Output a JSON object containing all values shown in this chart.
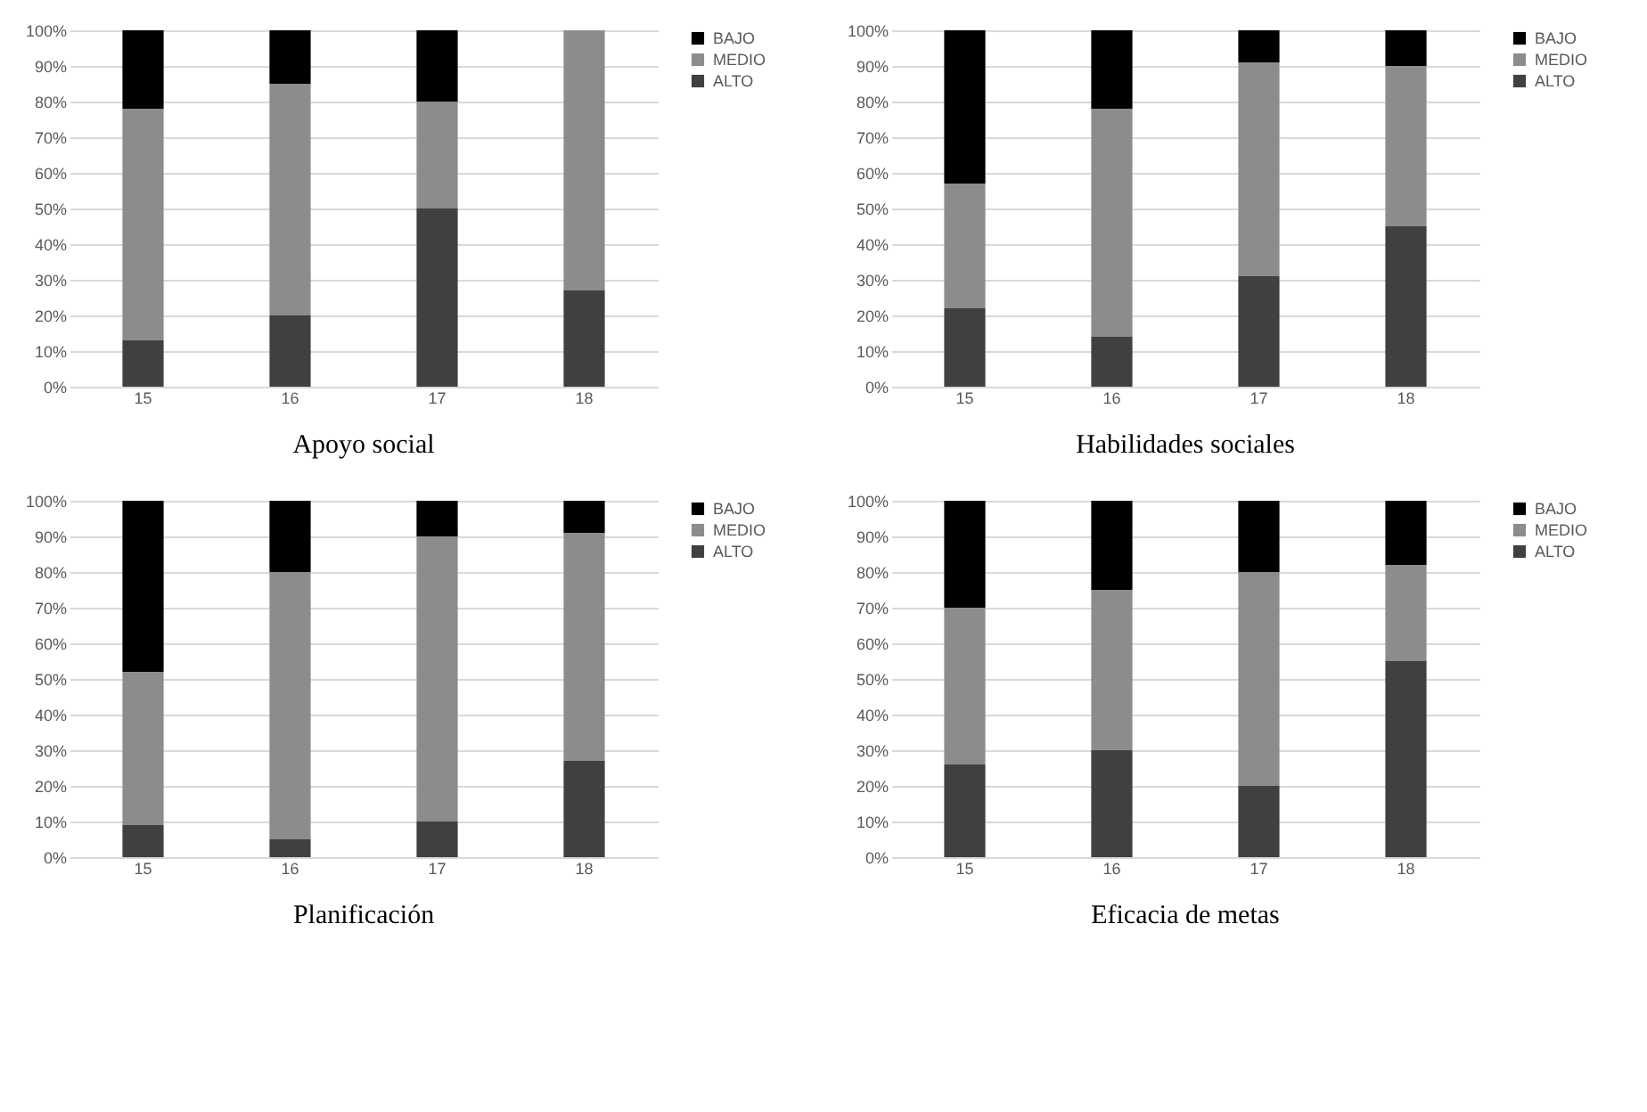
{
  "chart_data": [
    {
      "type": "bar",
      "stacked": true,
      "title": "Apoyo social",
      "categories": [
        "15",
        "16",
        "17",
        "18"
      ],
      "series": [
        {
          "name": "ALTO",
          "color": "#404040",
          "values": [
            13,
            20,
            50,
            27
          ]
        },
        {
          "name": "MEDIO",
          "color": "#8c8c8c",
          "values": [
            65,
            65,
            30,
            73
          ]
        },
        {
          "name": "BAJO",
          "color": "#000000",
          "values": [
            22,
            15,
            20,
            0
          ]
        }
      ],
      "ylim": [
        0,
        100
      ],
      "yticks": [
        {
          "value": 0,
          "label": "0%"
        },
        {
          "value": 10,
          "label": "10%"
        },
        {
          "value": 20,
          "label": "20%"
        },
        {
          "value": 30,
          "label": "30%"
        },
        {
          "value": 40,
          "label": "40%"
        },
        {
          "value": 50,
          "label": "50%"
        },
        {
          "value": 60,
          "label": "60%"
        },
        {
          "value": 70,
          "label": "70%"
        },
        {
          "value": 80,
          "label": "80%"
        },
        {
          "value": 90,
          "label": "90%"
        },
        {
          "value": 100,
          "label": "100%"
        }
      ],
      "grid": "y",
      "legend": "right"
    },
    {
      "type": "bar",
      "stacked": true,
      "title": "Habilidades sociales",
      "categories": [
        "15",
        "16",
        "17",
        "18"
      ],
      "series": [
        {
          "name": "ALTO",
          "color": "#404040",
          "values": [
            22,
            14,
            31,
            45
          ]
        },
        {
          "name": "MEDIO",
          "color": "#8c8c8c",
          "values": [
            35,
            64,
            60,
            45
          ]
        },
        {
          "name": "BAJO",
          "color": "#000000",
          "values": [
            43,
            22,
            9,
            10
          ]
        }
      ],
      "ylim": [
        0,
        100
      ],
      "yticks": [
        {
          "value": 0,
          "label": "0%"
        },
        {
          "value": 10,
          "label": "10%"
        },
        {
          "value": 20,
          "label": "20%"
        },
        {
          "value": 30,
          "label": "30%"
        },
        {
          "value": 40,
          "label": "40%"
        },
        {
          "value": 50,
          "label": "50%"
        },
        {
          "value": 60,
          "label": "60%"
        },
        {
          "value": 70,
          "label": "70%"
        },
        {
          "value": 80,
          "label": "80%"
        },
        {
          "value": 90,
          "label": "90%"
        },
        {
          "value": 100,
          "label": "100%"
        }
      ],
      "grid": "y",
      "legend": "right"
    },
    {
      "type": "bar",
      "stacked": true,
      "title": "Planificación",
      "categories": [
        "15",
        "16",
        "17",
        "18"
      ],
      "series": [
        {
          "name": "ALTO",
          "color": "#404040",
          "values": [
            9,
            5,
            10,
            27
          ]
        },
        {
          "name": "MEDIO",
          "color": "#8c8c8c",
          "values": [
            43,
            75,
            80,
            64
          ]
        },
        {
          "name": "BAJO",
          "color": "#000000",
          "values": [
            48,
            20,
            10,
            9
          ]
        }
      ],
      "ylim": [
        0,
        100
      ],
      "yticks": [
        {
          "value": 0,
          "label": "0%"
        },
        {
          "value": 10,
          "label": "10%"
        },
        {
          "value": 20,
          "label": "20%"
        },
        {
          "value": 30,
          "label": "30%"
        },
        {
          "value": 40,
          "label": "40%"
        },
        {
          "value": 50,
          "label": "50%"
        },
        {
          "value": 60,
          "label": "60%"
        },
        {
          "value": 70,
          "label": "70%"
        },
        {
          "value": 80,
          "label": "80%"
        },
        {
          "value": 90,
          "label": "90%"
        },
        {
          "value": 100,
          "label": "100%"
        }
      ],
      "grid": "y",
      "legend": "right"
    },
    {
      "type": "bar",
      "stacked": true,
      "title": "Eficacia de metas",
      "categories": [
        "15",
        "16",
        "17",
        "18"
      ],
      "series": [
        {
          "name": "ALTO",
          "color": "#404040",
          "values": [
            26,
            30,
            20,
            55
          ]
        },
        {
          "name": "MEDIO",
          "color": "#8c8c8c",
          "values": [
            44,
            45,
            60,
            27
          ]
        },
        {
          "name": "BAJO",
          "color": "#000000",
          "values": [
            30,
            25,
            20,
            18
          ]
        }
      ],
      "ylim": [
        0,
        100
      ],
      "yticks": [
        {
          "value": 0,
          "label": "0%"
        },
        {
          "value": 10,
          "label": "10%"
        },
        {
          "value": 20,
          "label": "20%"
        },
        {
          "value": 30,
          "label": "30%"
        },
        {
          "value": 40,
          "label": "40%"
        },
        {
          "value": 50,
          "label": "50%"
        },
        {
          "value": 60,
          "label": "60%"
        },
        {
          "value": 70,
          "label": "70%"
        },
        {
          "value": 80,
          "label": "80%"
        },
        {
          "value": 90,
          "label": "90%"
        },
        {
          "value": 100,
          "label": "100%"
        }
      ],
      "grid": "y",
      "legend": "right"
    }
  ]
}
